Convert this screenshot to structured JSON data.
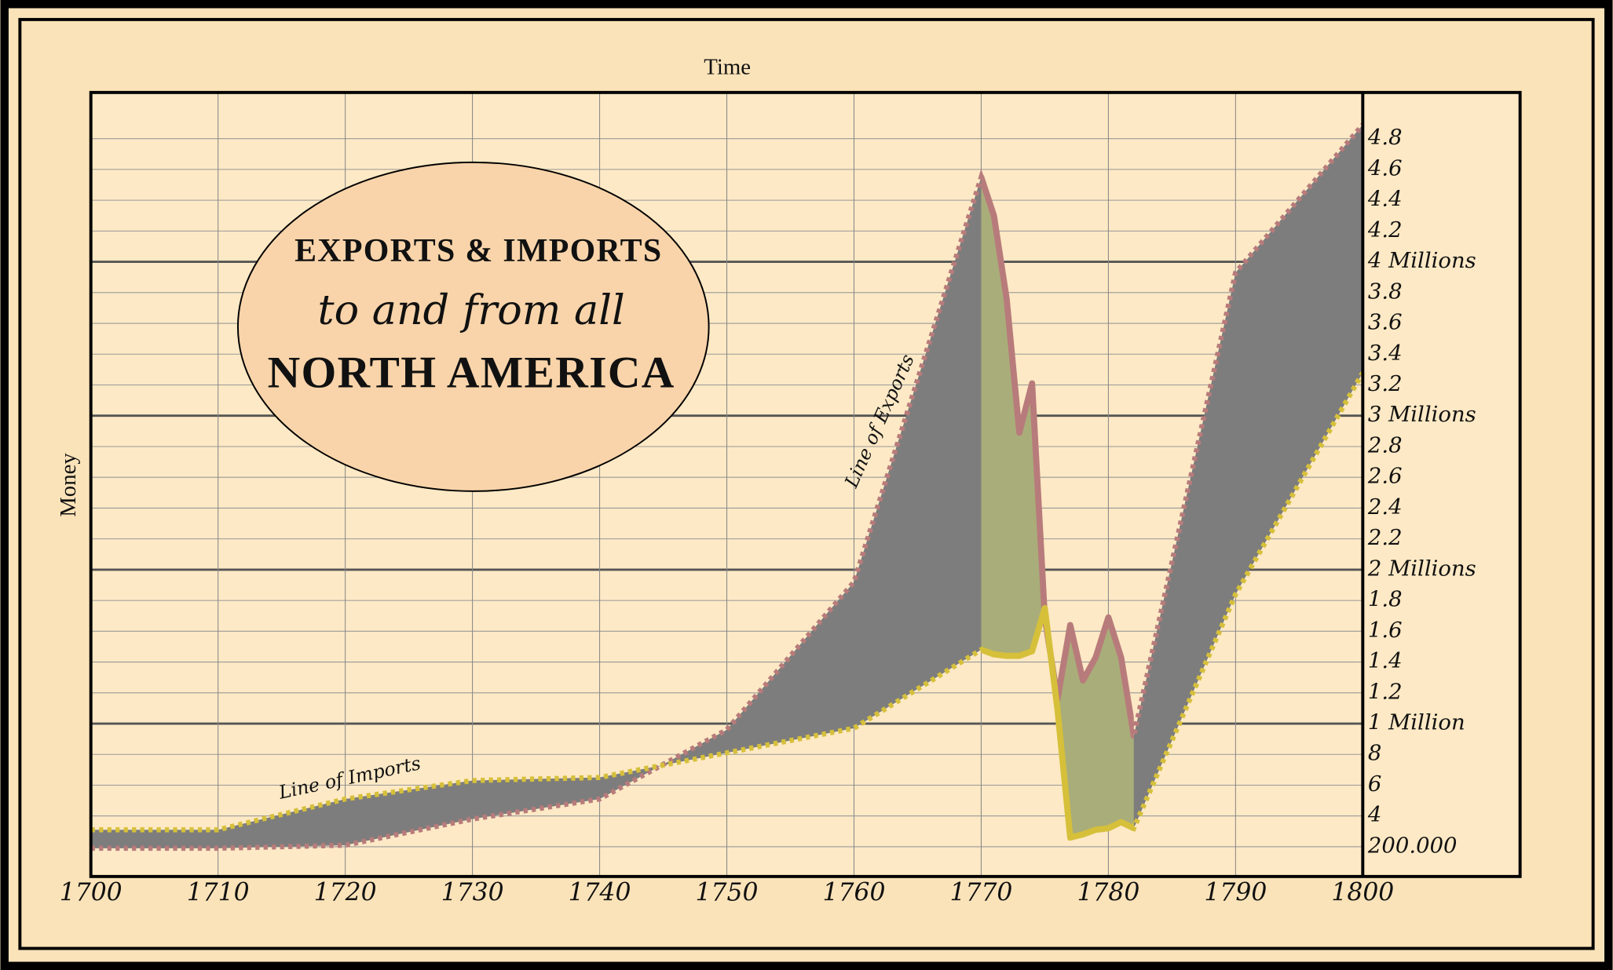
{
  "chart_data": {
    "type": "line",
    "title": [
      "EXPORTS & IMPORTS",
      "to and from all",
      "NORTH AMERICA"
    ],
    "x_label": "Time",
    "y_label": "Money",
    "annotations": [
      "Line of Imports",
      "Line of Exports"
    ],
    "x": [
      1700,
      1710,
      1720,
      1730,
      1740,
      1750,
      1760,
      1770,
      1771,
      1772,
      1773,
      1774,
      1775,
      1776,
      1777,
      1778,
      1779,
      1780,
      1781,
      1782,
      1790,
      1800
    ],
    "series": [
      {
        "color": "#b87b7b",
        "values": [
          0.19,
          0.19,
          0.21,
          0.38,
          0.51,
          0.96,
          1.92,
          4.55,
          4.3,
          3.76,
          2.89,
          3.21,
          1.69,
          1.16,
          1.64,
          1.28,
          1.43,
          1.69,
          1.43,
          0.92,
          3.93,
          4.89
        ]
      },
      {
        "color": "#d6c03a",
        "values": [
          0.31,
          0.31,
          0.51,
          0.63,
          0.65,
          0.81,
          0.97,
          1.48,
          1.45,
          1.44,
          1.44,
          1.47,
          1.75,
          1.09,
          0.26,
          0.28,
          0.31,
          0.32,
          0.36,
          0.32,
          1.84,
          3.28
        ]
      }
    ],
    "fill_color": "#7d7d7d",
    "highlight": {
      "x": [
        1770,
        1782
      ],
      "color": "#a9ad7a"
    },
    "xlim": [
      1700,
      1800
    ],
    "xticks": [
      1700,
      1710,
      1720,
      1730,
      1740,
      1750,
      1760,
      1770,
      1780,
      1790,
      1800
    ],
    "ylim": [
      0,
      5.1
    ],
    "yticks": [
      {
        "value": 0.2,
        "label": "200.000"
      },
      {
        "value": 0.4,
        "label": "4"
      },
      {
        "value": 0.6,
        "label": "6"
      },
      {
        "value": 0.8,
        "label": "8"
      },
      {
        "value": 1,
        "label": "1 Million"
      },
      1.2,
      1.4,
      1.6,
      1.8,
      {
        "value": 2,
        "label": "2 Millions"
      },
      2.2,
      2.4,
      2.6,
      2.8,
      {
        "value": 3,
        "label": "3 Millions"
      },
      3.2,
      3.4,
      3.6,
      3.8,
      {
        "value": 4,
        "label": "4 Millions"
      },
      4.2,
      4.4,
      4.6,
      4.8
    ],
    "grid": true
  }
}
